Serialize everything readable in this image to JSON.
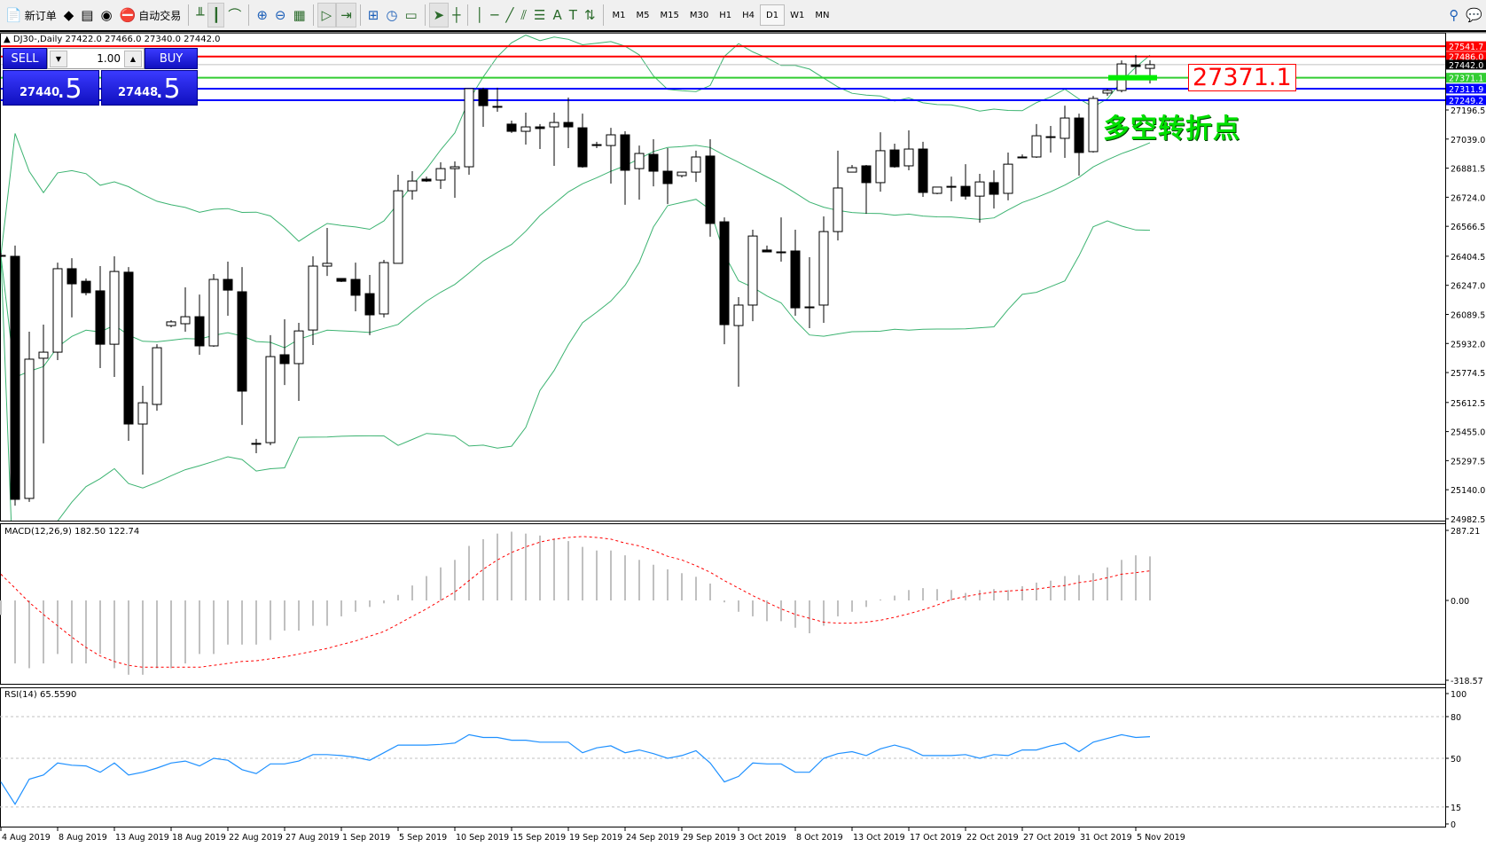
{
  "toolbar": {
    "items": [
      {
        "label": "新订单",
        "icon": "new-order-icon",
        "glyph": "📄"
      },
      {
        "label": "",
        "icon": "metaeditor-icon",
        "glyph": "◆"
      },
      {
        "label": "",
        "icon": "market-icon",
        "glyph": "▤"
      },
      {
        "label": "",
        "icon": "signals-icon",
        "glyph": "◉"
      },
      {
        "label": "自动交易",
        "icon": "autotrading-icon",
        "glyph": "⛔"
      }
    ],
    "tools": [
      {
        "icon": "bar-chart-icon",
        "glyph": "╨"
      },
      {
        "icon": "candlestick-icon",
        "glyph": "┃"
      },
      {
        "icon": "line-chart-icon",
        "glyph": "⌒"
      },
      {
        "icon": "zoom-in-icon",
        "glyph": "⊕"
      },
      {
        "icon": "zoom-out-icon",
        "glyph": "⊖"
      },
      {
        "icon": "tile-windows-icon",
        "glyph": "▦"
      },
      {
        "icon": "chart-shift-icon",
        "glyph": "▷"
      },
      {
        "icon": "autoscroll-icon",
        "glyph": "⇥"
      },
      {
        "icon": "indicators-icon",
        "glyph": "⊞"
      },
      {
        "icon": "periods-icon",
        "glyph": "◷"
      },
      {
        "icon": "templates-icon",
        "glyph": "▭"
      },
      {
        "icon": "cursor-icon",
        "glyph": "➤"
      },
      {
        "icon": "crosshair-icon",
        "glyph": "┼"
      },
      {
        "icon": "vertical-line-icon",
        "glyph": "│"
      },
      {
        "icon": "horizontal-line-icon",
        "glyph": "─"
      },
      {
        "icon": "trendline-icon",
        "glyph": "╱"
      },
      {
        "icon": "equidistant-channel-icon",
        "glyph": "⫽"
      },
      {
        "icon": "fibonacci-icon",
        "glyph": "☰"
      },
      {
        "icon": "text-icon",
        "glyph": "A"
      },
      {
        "icon": "text-label-icon",
        "glyph": "T"
      },
      {
        "icon": "arrows-icon",
        "glyph": "⇅"
      }
    ],
    "timeframes": [
      "M1",
      "M5",
      "M15",
      "M30",
      "H1",
      "H4",
      "D1",
      "W1",
      "MN"
    ],
    "active_timeframe": "D1"
  },
  "chart_header": {
    "symbol": "DJ30-,Daily",
    "ohlc": "27422.0 27466.0 27340.0 27442.0"
  },
  "trade_panel": {
    "sell_label": "SELL",
    "buy_label": "BUY",
    "lot": "1.00",
    "sell_big": "27440",
    "sell_frac": ".5",
    "buy_big": "27448",
    "buy_frac": ".5"
  },
  "annotations": {
    "price_box": "27371.1",
    "text": "多空转折点",
    "marker_price": 27371.1
  },
  "macd_panel": {
    "label": "MACD(12,26,9) 182.50 122.74",
    "axis": [
      "287.21",
      "0.00",
      "-318.57"
    ]
  },
  "rsi_panel": {
    "label": "RSI(14) 65.5590",
    "axis": [
      "100",
      "80",
      "50",
      "15",
      "0"
    ]
  },
  "colors": {
    "bull": "#ffffff",
    "bear": "#000000",
    "bands": "#3cb371",
    "macd_hist": "#c0c0c0",
    "macd_signal": "#ff0000",
    "rsi": "#1e90ff",
    "up_line": "#ff0000",
    "green_line": "#32cd32",
    "blue_line": "#0000ff",
    "marker": "#00ee00"
  },
  "chart_data": [
    {
      "type": "candlestick",
      "title": "DJ30-,Daily",
      "ylim": [
        24982.5,
        27600
      ],
      "y_ticks": [
        "27196.5",
        "27039.0",
        "26881.5",
        "26724.0",
        "26566.5",
        "26404.5",
        "26247.0",
        "26089.5",
        "25932.0",
        "25774.5",
        "25612.5",
        "25455.0",
        "25297.5",
        "25140.0",
        "24982.5"
      ],
      "x_tick_labels": [
        {
          "index": 0,
          "label": "4 Aug 2019"
        },
        {
          "index": 4,
          "label": "8 Aug 2019"
        },
        {
          "index": 8,
          "label": "13 Aug 2019"
        },
        {
          "index": 12,
          "label": "18 Aug 2019"
        },
        {
          "index": 16,
          "label": "22 Aug 2019"
        },
        {
          "index": 20,
          "label": "27 Aug 2019"
        },
        {
          "index": 24,
          "label": "1 Sep 2019"
        },
        {
          "index": 28,
          "label": "5 Sep 2019"
        },
        {
          "index": 32,
          "label": "10 Sep 2019"
        },
        {
          "index": 36,
          "label": "15 Sep 2019"
        },
        {
          "index": 40,
          "label": "19 Sep 2019"
        },
        {
          "index": 44,
          "label": "24 Sep 2019"
        },
        {
          "index": 48,
          "label": "29 Sep 2019"
        },
        {
          "index": 52,
          "label": "3 Oct 2019"
        },
        {
          "index": 56,
          "label": "8 Oct 2019"
        },
        {
          "index": 60,
          "label": "13 Oct 2019"
        },
        {
          "index": 64,
          "label": "17 Oct 2019"
        },
        {
          "index": 68,
          "label": "22 Oct 2019"
        },
        {
          "index": 72,
          "label": "27 Oct 2019"
        },
        {
          "index": 76,
          "label": "31 Oct 2019"
        },
        {
          "index": 80,
          "label": "5 Nov 2019"
        }
      ],
      "ohlc": [
        [
          26409,
          26423,
          26399,
          26409
        ],
        [
          26404,
          26462,
          25054,
          25088
        ],
        [
          25093,
          25996,
          25074,
          25847
        ],
        [
          25852,
          26034,
          25391,
          25885
        ],
        [
          25885,
          26370,
          25842,
          26337
        ],
        [
          26337,
          26394,
          26073,
          26255
        ],
        [
          26269,
          26284,
          26193,
          26207
        ],
        [
          26217,
          26351,
          25799,
          25928
        ],
        [
          25928,
          26404,
          25751,
          26322
        ],
        [
          26318,
          26346,
          25405,
          25496
        ],
        [
          25496,
          25703,
          25222,
          25611
        ],
        [
          25602,
          25928,
          25568,
          25909
        ],
        [
          26029,
          26058,
          26020,
          26049
        ],
        [
          26039,
          26236,
          25996,
          26077
        ],
        [
          26077,
          26197,
          25871,
          25919
        ],
        [
          25919,
          26308,
          25914,
          26279
        ],
        [
          26279,
          26375,
          26082,
          26221
        ],
        [
          26212,
          26346,
          25491,
          25674
        ],
        [
          25391,
          25415,
          25338,
          25391
        ],
        [
          25395,
          25977,
          25381,
          25861
        ],
        [
          25871,
          26063,
          25707,
          25823
        ],
        [
          25823,
          26044,
          25621,
          26000
        ],
        [
          26005,
          26404,
          25924,
          26351
        ],
        [
          26351,
          26558,
          26298,
          26366
        ],
        [
          26284,
          26284,
          26265,
          26269
        ],
        [
          26279,
          26370,
          26106,
          26193
        ],
        [
          26202,
          26303,
          25977,
          26087
        ],
        [
          26092,
          26385,
          26073,
          26370
        ],
        [
          26366,
          26846,
          26366,
          26759
        ],
        [
          26759,
          26865,
          26711,
          26812
        ],
        [
          26822,
          26836,
          26807,
          26812
        ],
        [
          26817,
          26913,
          26769,
          26879
        ],
        [
          26879,
          26918,
          26721,
          26889
        ],
        [
          26889,
          27312,
          26846,
          27312
        ],
        [
          27307,
          27317,
          27105,
          27220
        ],
        [
          27216,
          27317,
          27187,
          27216
        ],
        [
          27120,
          27139,
          27072,
          27081
        ],
        [
          27081,
          27182,
          27009,
          27105
        ],
        [
          27105,
          27120,
          26985,
          27096
        ],
        [
          27105,
          27182,
          26894,
          27129
        ],
        [
          27129,
          27264,
          26990,
          27105
        ],
        [
          27100,
          27177,
          26884,
          26889
        ],
        [
          27009,
          27024,
          26990,
          27004
        ],
        [
          27004,
          27100,
          26798,
          27062
        ],
        [
          27062,
          27081,
          26683,
          26870
        ],
        [
          26879,
          27004,
          26711,
          26961
        ],
        [
          26956,
          27038,
          26783,
          26865
        ],
        [
          26865,
          26990,
          26687,
          26798
        ],
        [
          26841,
          26860,
          26831,
          26860
        ],
        [
          26860,
          26976,
          26807,
          26942
        ],
        [
          26947,
          27038,
          26510,
          26582
        ],
        [
          26591,
          26615,
          25928,
          26034
        ],
        [
          26029,
          26183,
          25698,
          26140
        ],
        [
          26140,
          26548,
          26053,
          26514
        ],
        [
          26438,
          26462,
          26428,
          26428
        ],
        [
          26428,
          26615,
          26375,
          26428
        ],
        [
          26433,
          26548,
          26082,
          26125
        ],
        [
          26130,
          26399,
          26015,
          26130
        ],
        [
          26140,
          26620,
          26044,
          26538
        ],
        [
          26538,
          26976,
          26490,
          26774
        ],
        [
          26860,
          26899,
          26860,
          26884
        ],
        [
          26894,
          26899,
          26634,
          26803
        ],
        [
          26803,
          27076,
          26754,
          26976
        ],
        [
          26980,
          27014,
          26884,
          26889
        ],
        [
          26894,
          27086,
          26870,
          26985
        ],
        [
          26985,
          27024,
          26726,
          26750
        ],
        [
          26745,
          26779,
          26740,
          26779
        ],
        [
          26783,
          26836,
          26702,
          26783
        ],
        [
          26783,
          26903,
          26711,
          26730
        ],
        [
          26730,
          26851,
          26586,
          26807
        ],
        [
          26803,
          26870,
          26663,
          26740
        ],
        [
          26745,
          26966,
          26707,
          26903
        ],
        [
          26942,
          26956,
          26937,
          26942
        ],
        [
          26942,
          27120,
          26937,
          27057
        ],
        [
          27052,
          27110,
          26966,
          27048
        ],
        [
          27043,
          27220,
          26937,
          27153
        ],
        [
          27153,
          27177,
          26841,
          26966
        ],
        [
          26971,
          27273,
          26966,
          27259
        ],
        [
          27288,
          27312,
          27273,
          27302
        ],
        [
          27302,
          27465,
          27292,
          27446
        ],
        [
          27441,
          27494,
          27389,
          27432
        ],
        [
          27422,
          27466,
          27340,
          27442
        ]
      ],
      "indicator": "Bollinger Bands (20,2)",
      "horizontal_lines": [
        {
          "price": 27541.7,
          "label": "27541.7",
          "color": "#ff0000"
        },
        {
          "price": 27486.0,
          "label": "27486.0",
          "color": "#ff0000"
        },
        {
          "price": 27442.0,
          "label": "27442.0",
          "color": "#000000",
          "line_color": "#c0c0c0"
        },
        {
          "price": 27371.1,
          "label": "27371.1",
          "color": "#32cd32"
        },
        {
          "price": 27311.9,
          "label": "27311.9",
          "color": "#0000ff"
        },
        {
          "price": 27249.2,
          "label": "27249.2",
          "color": "#0000ff"
        }
      ]
    },
    {
      "type": "bar+line",
      "title": "MACD(12,26,9)",
      "ylim": [
        -318.57,
        287.21
      ],
      "histogram": [
        -60,
        -261,
        -281,
        -261,
        -222,
        -261,
        -261,
        -222,
        -281,
        -308,
        -308,
        -281,
        -281,
        -261,
        -222,
        -222,
        -183,
        -183,
        -183,
        -164,
        -125,
        -125,
        -105,
        -105,
        -66,
        -47,
        -27,
        -12,
        23,
        62,
        101,
        137,
        168,
        226,
        254,
        277,
        285,
        277,
        269,
        254,
        246,
        222,
        207,
        207,
        187,
        168,
        148,
        129,
        113,
        98,
        70,
        -8,
        -47,
        -66,
        -86,
        -86,
        -113,
        -136,
        -105,
        -66,
        -47,
        -27,
        4,
        20,
        43,
        51,
        47,
        43,
        31,
        43,
        47,
        43,
        59,
        74,
        82,
        101,
        105,
        113,
        137,
        168,
        187,
        182.5
      ],
      "signal": [
        109,
        51,
        -8,
        -58,
        -105,
        -152,
        -195,
        -230,
        -253,
        -269,
        -277,
        -277,
        -277,
        -277,
        -277,
        -269,
        -261,
        -253,
        -250,
        -242,
        -234,
        -222,
        -211,
        -199,
        -183,
        -168,
        -148,
        -129,
        -98,
        -66,
        -35,
        0,
        35,
        82,
        129,
        168,
        199,
        222,
        242,
        254,
        261,
        265,
        261,
        254,
        238,
        226,
        207,
        183,
        168,
        144,
        117,
        82,
        51,
        20,
        -8,
        -35,
        -58,
        -74,
        -90,
        -94,
        -94,
        -90,
        -82,
        -70,
        -55,
        -39,
        -19,
        4,
        16,
        27,
        35,
        39,
        43,
        47,
        55,
        62,
        74,
        82,
        94,
        109,
        115,
        122.74
      ]
    },
    {
      "type": "line",
      "title": "RSI(14)",
      "ylim": [
        0,
        100
      ],
      "levels": [
        80,
        50,
        15
      ],
      "values": [
        33,
        17,
        35,
        38,
        46.6,
        45,
        44.5,
        40,
        46.6,
        38,
        40,
        43,
        46.6,
        48,
        44.5,
        50,
        48.6,
        41.8,
        39,
        46,
        46,
        48,
        52.7,
        52.7,
        52,
        50.7,
        48.6,
        54,
        59.5,
        59.5,
        59.5,
        60,
        61,
        67,
        65,
        65,
        63,
        63,
        61.6,
        61.6,
        61.6,
        54,
        57.5,
        59,
        54,
        56,
        53.4,
        50,
        52,
        55.5,
        46.6,
        33,
        37,
        46.6,
        46,
        46,
        40,
        40,
        50,
        53.4,
        54.8,
        52,
        56.8,
        59.5,
        56.8,
        52,
        52,
        52,
        52.7,
        50,
        52.7,
        52,
        56,
        56,
        59,
        61,
        54.8,
        61.6,
        64.3,
        67,
        65,
        65.559
      ]
    }
  ]
}
